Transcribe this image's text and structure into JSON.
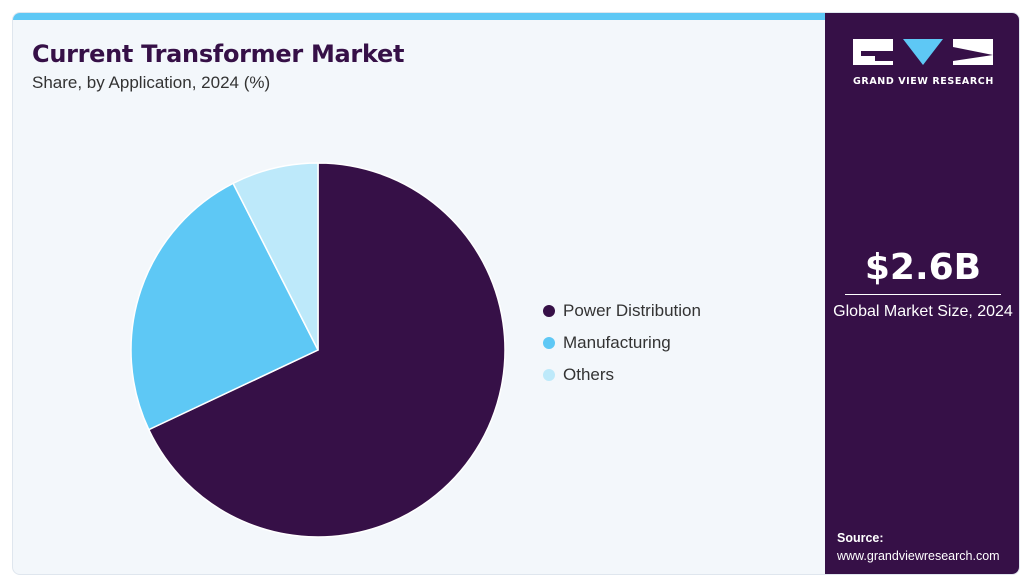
{
  "header": {
    "title": "Current Transformer Market",
    "subtitle": "Share, by Application, 2024 (%)"
  },
  "brand": {
    "name": "GRAND VIEW RESEARCH",
    "colors": {
      "dark": "#361047",
      "accent": "#5ec8f5",
      "light": "#bde9fa"
    }
  },
  "sidebar": {
    "market_size_value": "$2.6B",
    "market_size_label": "Global Market Size, 2024",
    "source_label": "Source:",
    "source_url": "www.grandviewresearch.com"
  },
  "chart_data": {
    "type": "pie",
    "title": "Current Transformer Market",
    "subtitle": "Share, by Application, 2024 (%)",
    "legend_position": "right",
    "categories": [
      "Power Distribution",
      "Manufacturing",
      "Others"
    ],
    "values": [
      68,
      24.5,
      7.5
    ],
    "colors": [
      "#361047",
      "#5ec8f5",
      "#bde9fa"
    ]
  }
}
